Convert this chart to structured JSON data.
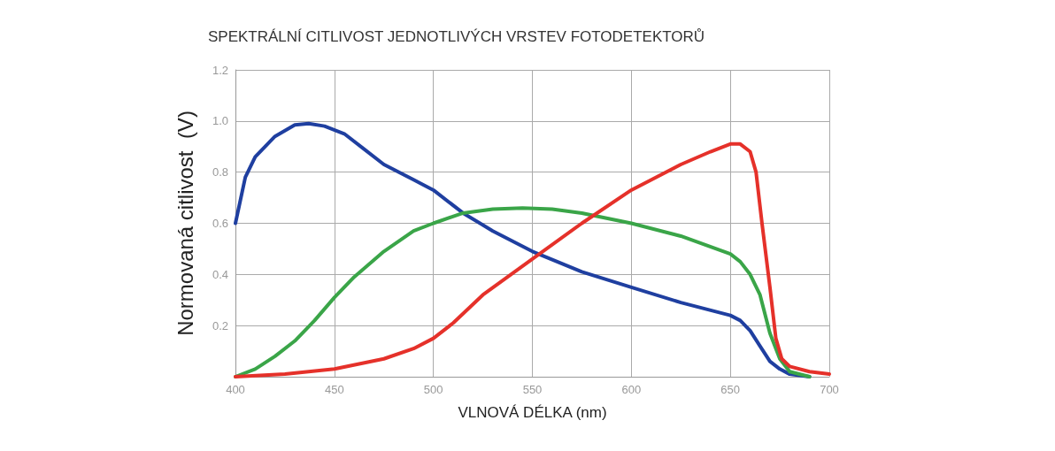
{
  "chart_data": {
    "type": "line",
    "title": "SPEKTRÁLNÍ CITLIVOST JEDNOTLIVÝCH VRSTEV FOTODETEKTORŮ",
    "xlabel": "VLNOVÁ DÉLKA (nm)",
    "ylabel": "Normovaná citlivost  (V)",
    "xlim": [
      400,
      700
    ],
    "xticks": [
      400,
      450,
      500,
      550,
      600,
      650,
      700
    ],
    "ylim": [
      0,
      1.2
    ],
    "yticks": [
      {
        "value": 0,
        "label": null
      },
      0.2,
      0.4,
      0.6,
      0.8,
      {
        "value": 1,
        "label": "1.0"
      },
      1.2
    ],
    "grid": true,
    "marker": "none",
    "line_style": "solid",
    "series": [
      {
        "color": "#1f3fa0",
        "x": [
          400,
          405,
          410,
          420,
          430,
          437,
          445,
          455,
          465,
          475,
          490,
          500,
          515,
          530,
          550,
          575,
          600,
          625,
          650,
          655,
          660,
          665,
          670,
          675,
          680,
          690
        ],
        "values": [
          0.6,
          0.78,
          0.86,
          0.94,
          0.985,
          0.99,
          0.98,
          0.95,
          0.89,
          0.83,
          0.77,
          0.73,
          0.64,
          0.57,
          0.49,
          0.41,
          0.35,
          0.29,
          0.24,
          0.22,
          0.18,
          0.12,
          0.06,
          0.03,
          0.01,
          0
        ]
      },
      {
        "color": "#3aa548",
        "x": [
          400,
          410,
          420,
          430,
          440,
          450,
          460,
          475,
          490,
          500,
          515,
          530,
          545,
          560,
          575,
          600,
          625,
          650,
          655,
          660,
          665,
          670,
          675,
          680,
          690
        ],
        "values": [
          0,
          0.03,
          0.08,
          0.14,
          0.22,
          0.31,
          0.39,
          0.49,
          0.57,
          0.6,
          0.64,
          0.655,
          0.66,
          0.655,
          0.64,
          0.6,
          0.55,
          0.48,
          0.45,
          0.4,
          0.32,
          0.17,
          0.07,
          0.02,
          0
        ]
      },
      {
        "color": "#e5312a",
        "x": [
          400,
          425,
          450,
          475,
          490,
          500,
          510,
          525,
          550,
          575,
          600,
          625,
          640,
          650,
          655,
          660,
          663,
          666,
          670,
          673,
          676,
          680,
          690,
          700
        ],
        "values": [
          0,
          0.01,
          0.03,
          0.07,
          0.11,
          0.15,
          0.21,
          0.32,
          0.46,
          0.6,
          0.73,
          0.83,
          0.88,
          0.91,
          0.91,
          0.88,
          0.8,
          0.6,
          0.35,
          0.15,
          0.07,
          0.04,
          0.02,
          0.01
        ]
      }
    ]
  }
}
